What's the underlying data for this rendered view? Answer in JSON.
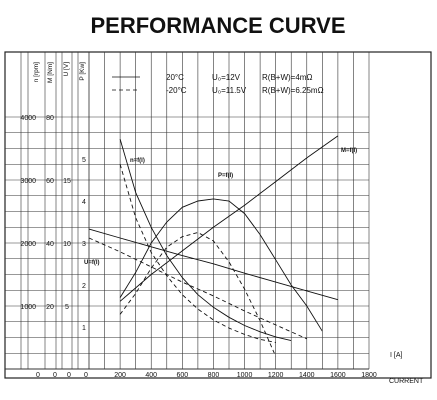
{
  "chart_data": {
    "type": "line",
    "title": "PERFORMANCE CURVE",
    "x_axis": {
      "label": "I [A]",
      "caption": "CURRENT",
      "range": [
        0,
        1800
      ],
      "ticks": [
        "0",
        "0",
        "0",
        "0",
        "200",
        "400",
        "600",
        "800",
        "1000",
        "1200",
        "1400",
        "1600",
        "1800"
      ]
    },
    "y_axes": [
      {
        "label": "n [rpm]",
        "range": [
          0,
          4000
        ],
        "ticks": [
          "1000",
          "2000",
          "3000",
          "4000"
        ]
      },
      {
        "label": "M [Nm]",
        "range": [
          0,
          80
        ],
        "ticks": [
          "20",
          "40",
          "60",
          "80"
        ]
      },
      {
        "label": "U [V]",
        "range": [
          0,
          20
        ],
        "ticks": [
          "5",
          "10",
          "15"
        ]
      },
      {
        "label": "P [Kw]",
        "range": [
          0,
          6
        ],
        "ticks": [
          "1",
          "2",
          "3",
          "4",
          "5"
        ]
      }
    ],
    "legend": [
      {
        "style": "solid",
        "temp": "20°C",
        "voltage": "U₀=12V",
        "resistance": "R(B+W)=4mΩ"
      },
      {
        "style": "dashed",
        "temp": "-20°C",
        "voltage": "U₀=11.5V",
        "resistance": "R(B+W)=6.25mΩ"
      }
    ],
    "curve_labels": [
      "n=f(I)",
      "P=f(I)",
      "M=f(I)",
      "U=f(I)"
    ],
    "series": [
      {
        "name": "n=f(I)",
        "condition": "20°C",
        "style": "solid",
        "x": [
          200,
          300,
          400,
          500,
          600,
          700,
          800,
          900,
          1000,
          1100,
          1200,
          1300
        ],
        "y": [
          3650,
          2800,
          2250,
          1800,
          1450,
          1180,
          980,
          820,
          690,
          590,
          510,
          450
        ]
      },
      {
        "name": "n=f(I)",
        "condition": "-20°C",
        "style": "dashed",
        "x": [
          200,
          300,
          400,
          500,
          600,
          700,
          800,
          900,
          1000,
          1100,
          1200
        ],
        "y": [
          3250,
          2400,
          1850,
          1480,
          1180,
          950,
          780,
          650,
          550,
          470,
          420
        ]
      },
      {
        "name": "P=f(I)",
        "condition": "20°C",
        "style": "solid",
        "x": [
          200,
          300,
          400,
          500,
          600,
          700,
          800,
          900,
          1000,
          1100,
          1200,
          1300,
          1400,
          1500
        ],
        "y": [
          1.7,
          2.3,
          3.0,
          3.5,
          3.85,
          4.0,
          4.05,
          4.0,
          3.7,
          3.2,
          2.6,
          2.0,
          1.5,
          0.9
        ]
      },
      {
        "name": "P=f(I)",
        "condition": "-20°C",
        "style": "dashed",
        "x": [
          200,
          300,
          400,
          500,
          600,
          700,
          800,
          900,
          1000,
          1100,
          1200
        ],
        "y": [
          1.3,
          1.8,
          2.4,
          2.9,
          3.15,
          3.25,
          3.05,
          2.55,
          1.9,
          1.15,
          0.3
        ]
      },
      {
        "name": "M=f(I)",
        "condition": "20°C",
        "style": "solid",
        "x": [
          200,
          400,
          600,
          800,
          1000,
          1200,
          1400,
          1600
        ],
        "y": [
          21.5,
          30,
          37.5,
          45,
          52,
          59.5,
          67,
          74
        ]
      },
      {
        "name": "U=f(I)",
        "condition": "20°C",
        "style": "solid",
        "x": [
          0,
          200,
          400,
          600,
          800,
          1000,
          1200,
          1400,
          1600
        ],
        "y": [
          11.1,
          10.4,
          9.7,
          9.0,
          8.35,
          7.6,
          6.9,
          6.2,
          5.5
        ]
      },
      {
        "name": "U=f(I)",
        "condition": "-20°C",
        "style": "dashed",
        "x": [
          0,
          200,
          400,
          600,
          800,
          1000,
          1200,
          1400
        ],
        "y": [
          10.4,
          9.3,
          8.1,
          6.9,
          5.8,
          4.6,
          3.5,
          2.4
        ]
      }
    ]
  }
}
